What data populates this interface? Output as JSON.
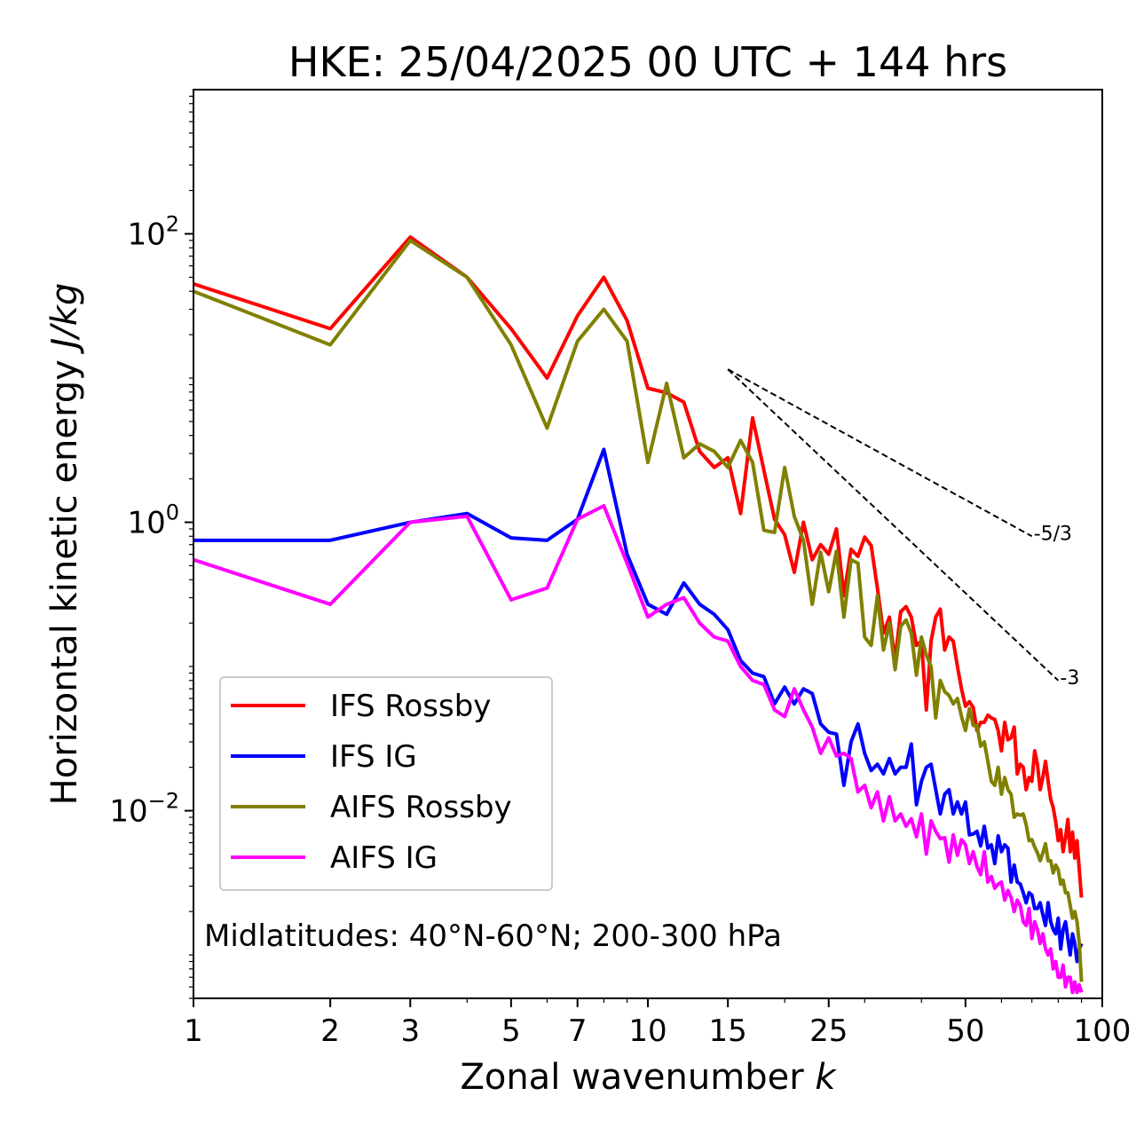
{
  "chart_data": {
    "type": "line",
    "title": "HKE: 25/04/2025 00 UTC + 144 hrs",
    "xlabel": "Zonal wavenumber",
    "xlabel_var": "k",
    "ylabel": "Horizontal kinetic energy",
    "ylabel_unit": "J/kg",
    "xscale": "log",
    "yscale": "log",
    "xlim": [
      1,
      100
    ],
    "ylim": [
      0.0005,
      1000
    ],
    "x_ticks": [
      1,
      2,
      3,
      5,
      7,
      10,
      15,
      25,
      50,
      100
    ],
    "x_tick_labels": [
      "1",
      "2",
      "3",
      "5",
      "7",
      "10",
      "15",
      "25",
      "50",
      "100"
    ],
    "y_ticks": [
      {
        "value": 100,
        "base": "10",
        "exp": "2"
      },
      {
        "value": 1,
        "base": "10",
        "exp": "0"
      },
      {
        "value": 0.01,
        "base": "10",
        "exp": "−2"
      }
    ],
    "grid": false,
    "legend_position": "lower-left",
    "annotation": "Midlatitudes: 40°N-60°N; 200-300 hPa",
    "reference_lines": [
      {
        "label": "-5/3",
        "x": [
          15,
          70
        ],
        "y": [
          11.5,
          0.8
        ]
      },
      {
        "label": "-3",
        "x": [
          15,
          80
        ],
        "y": [
          11.5,
          0.08
        ]
      }
    ],
    "series": [
      {
        "name": "IFS Rossby",
        "color": "#ff0000",
        "y": [
          45,
          22,
          95,
          50,
          22,
          10,
          27,
          50,
          25,
          8.5,
          7.9,
          6.8,
          3.1,
          2.4,
          2.8,
          1.15,
          5.3,
          2.3,
          1.05,
          0.82,
          0.45,
          1,
          0.55,
          0.7,
          0.6,
          0.9,
          0.31,
          0.65,
          0.58,
          0.79,
          0.69,
          0.35,
          0.17,
          0.22,
          0.11,
          0.24,
          0.26,
          0.22,
          0.14,
          0.15,
          0.05,
          0.15,
          0.22,
          0.25,
          0.13,
          0.16,
          0.15,
          0.1,
          0.07,
          0.053,
          0.057,
          0.052,
          0.036,
          0.041,
          0.041,
          0.046,
          0.044,
          0.043,
          0.036,
          0.026,
          0.041,
          0.031,
          0.032,
          0.038,
          0.018,
          0.021,
          0.02,
          0.014,
          0.017,
          0.016,
          0.026,
          0.021,
          0.014,
          0.017,
          0.022,
          0.016,
          0.012,
          0.0105,
          0.0083,
          0.0062,
          0.0074,
          0.0052,
          0.0065,
          0.0087,
          0.0052,
          0.0071,
          0.0047,
          0.0062,
          0.0039,
          0.0025
        ]
      },
      {
        "name": "IFS IG",
        "color": "#0000ff",
        "y": [
          0.75,
          0.75,
          1.0,
          1.15,
          0.78,
          0.75,
          1.05,
          3.2,
          0.6,
          0.27,
          0.23,
          0.38,
          0.27,
          0.23,
          0.18,
          0.11,
          0.09,
          0.085,
          0.055,
          0.072,
          0.055,
          0.07,
          0.065,
          0.04,
          0.035,
          0.034,
          0.015,
          0.03,
          0.04,
          0.025,
          0.019,
          0.021,
          0.018,
          0.023,
          0.018,
          0.02,
          0.02,
          0.029,
          0.011,
          0.016,
          0.02,
          0.021,
          0.014,
          0.0095,
          0.013,
          0.014,
          0.0095,
          0.0115,
          0.0095,
          0.0115,
          0.0068,
          0.0069,
          0.0072,
          0.0057,
          0.0078,
          0.0055,
          0.0058,
          0.0043,
          0.0067,
          0.0052,
          0.0058,
          0.0055,
          0.0032,
          0.0042,
          0.0032,
          0.0031,
          0.0027,
          0.0023,
          0.0027,
          0.0026,
          0.0021,
          0.0021,
          0.0023,
          0.0019,
          0.0016,
          0.0023,
          0.0017,
          0.0015,
          0.0014,
          0.0018,
          0.0011,
          0.0015,
          0.0017,
          0.0013,
          0.001,
          0.0014,
          0.0012,
          0.0009,
          0.0011,
          0.0012
        ]
      },
      {
        "name": "AIFS Rossby",
        "color": "#808000",
        "y": [
          40,
          17,
          90,
          50,
          17,
          4.5,
          18,
          30,
          18,
          2.6,
          9.2,
          2.8,
          3.5,
          3.1,
          2.4,
          3.7,
          2.6,
          0.88,
          0.85,
          2.4,
          1.1,
          0.75,
          0.27,
          0.62,
          0.33,
          0.63,
          0.22,
          0.55,
          0.52,
          0.16,
          0.14,
          0.31,
          0.13,
          0.2,
          0.095,
          0.19,
          0.21,
          0.17,
          0.087,
          0.16,
          0.12,
          0.1,
          0.044,
          0.08,
          0.067,
          0.063,
          0.055,
          0.06,
          0.045,
          0.036,
          0.051,
          0.039,
          0.039,
          0.028,
          0.03,
          0.022,
          0.016,
          0.015,
          0.02,
          0.013,
          0.017,
          0.014,
          0.013,
          0.009,
          0.0095,
          0.0093,
          0.0095,
          0.008,
          0.0062,
          0.0063,
          0.0056,
          0.0051,
          0.0045,
          0.0051,
          0.0059,
          0.0045,
          0.0045,
          0.0037,
          0.0042,
          0.0039,
          0.0031,
          0.0033,
          0.0027,
          0.0027,
          0.0022,
          0.0018,
          0.002,
          0.0017,
          0.0012,
          0.00065
        ]
      },
      {
        "name": "AIFS IG",
        "color": "#ff00ff",
        "y": [
          0.55,
          0.27,
          1.0,
          1.1,
          0.29,
          0.35,
          1.05,
          1.3,
          0.52,
          0.22,
          0.27,
          0.3,
          0.2,
          0.16,
          0.15,
          0.1,
          0.08,
          0.075,
          0.05,
          0.045,
          0.07,
          0.05,
          0.038,
          0.025,
          0.032,
          0.024,
          0.025,
          0.023,
          0.0135,
          0.015,
          0.0105,
          0.0135,
          0.0085,
          0.0125,
          0.0085,
          0.0095,
          0.0078,
          0.0088,
          0.0066,
          0.0095,
          0.005,
          0.0085,
          0.0072,
          0.0064,
          0.0065,
          0.0044,
          0.0068,
          0.0049,
          0.0063,
          0.0058,
          0.0043,
          0.0052,
          0.0041,
          0.0036,
          0.0052,
          0.0032,
          0.0035,
          0.0029,
          0.0031,
          0.0032,
          0.0024,
          0.0028,
          0.0025,
          0.002,
          0.0024,
          0.0022,
          0.0017,
          0.0016,
          0.0021,
          0.0013,
          0.0017,
          0.0015,
          0.0012,
          0.0014,
          0.0011,
          0.001,
          0.0011,
          0.0008,
          0.0009,
          0.0007,
          0.0007,
          0.00085,
          0.0006,
          0.0007,
          0.0007,
          0.00055,
          0.00065,
          0.00055,
          0.00062,
          0.00055
        ]
      }
    ]
  }
}
